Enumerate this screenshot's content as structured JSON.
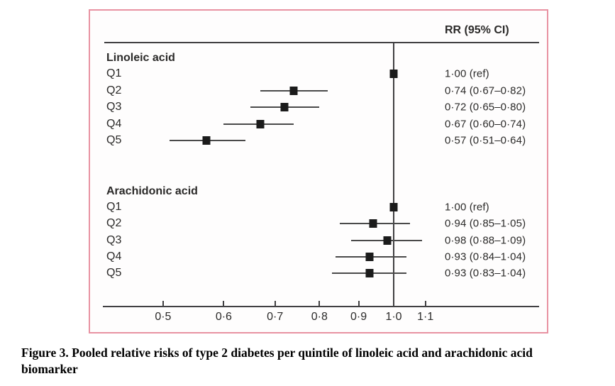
{
  "figure": {
    "caption": "Figure 3. Pooled relative risks of type 2 diabetes per quintile of linoleic acid and arachidonic acid\nbiomarker"
  },
  "chart_data": {
    "type": "forest",
    "column_header": "RR (95% CI)",
    "x_axis": {
      "scale": "log",
      "ticks": [
        0.5,
        0.6,
        0.7,
        0.8,
        0.9,
        1.0,
        1.1
      ],
      "tick_labels": [
        "0·5",
        "0·6",
        "0·7",
        "0·8",
        "0·9",
        "1·0",
        "1·1"
      ],
      "reference_line": 1.0
    },
    "groups": [
      {
        "name": "Linoleic acid",
        "rows": [
          {
            "label": "Q1",
            "rr": 1.0,
            "ci_low": null,
            "ci_high": null,
            "text": "1·00 (ref)"
          },
          {
            "label": "Q2",
            "rr": 0.74,
            "ci_low": 0.67,
            "ci_high": 0.82,
            "text": "0·74 (0·67–0·82)"
          },
          {
            "label": "Q3",
            "rr": 0.72,
            "ci_low": 0.65,
            "ci_high": 0.8,
            "text": "0·72 (0·65–0·80)"
          },
          {
            "label": "Q4",
            "rr": 0.67,
            "ci_low": 0.6,
            "ci_high": 0.74,
            "text": "0·67 (0·60–0·74)"
          },
          {
            "label": "Q5",
            "rr": 0.57,
            "ci_low": 0.51,
            "ci_high": 0.64,
            "text": "0·57 (0·51–0·64)"
          }
        ]
      },
      {
        "name": "Arachidonic acid",
        "rows": [
          {
            "label": "Q1",
            "rr": 1.0,
            "ci_low": null,
            "ci_high": null,
            "text": "1·00 (ref)"
          },
          {
            "label": "Q2",
            "rr": 0.94,
            "ci_low": 0.85,
            "ci_high": 1.05,
            "text": "0·94 (0·85–1·05)"
          },
          {
            "label": "Q3",
            "rr": 0.98,
            "ci_low": 0.88,
            "ci_high": 1.09,
            "text": "0·98 (0·88–1·09)"
          },
          {
            "label": "Q4",
            "rr": 0.93,
            "ci_low": 0.84,
            "ci_high": 1.04,
            "text": "0·93 (0·84–1·04)"
          },
          {
            "label": "Q5",
            "rr": 0.93,
            "ci_low": 0.83,
            "ci_high": 1.04,
            "text": "0·93 (0·83–1·04)"
          }
        ]
      }
    ],
    "colors": {
      "border": "#e892a2",
      "marker": "#1b1b1b",
      "line": "#414042",
      "text": "#2b2a29"
    }
  }
}
